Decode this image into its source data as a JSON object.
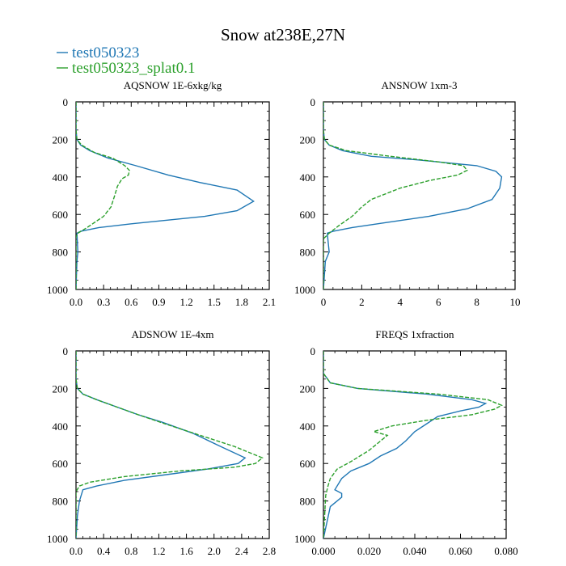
{
  "title": "Snow at238E,27N",
  "legend": [
    {
      "name": "test050323",
      "color": "#1f77b4",
      "dash": "solid"
    },
    {
      "name": "test050323_splat0.1",
      "color": "#2ca02c",
      "dash": "dashed"
    }
  ],
  "chart_data": [
    {
      "type": "line",
      "title": "AQSNOW  1E-6xkg/kg",
      "xlim": [
        0,
        2.1
      ],
      "xticks": [
        0,
        0.3,
        0.6,
        0.9,
        1.2,
        1.5,
        1.8,
        2.1
      ],
      "xtick_labels": [
        "0.0",
        "0.3",
        "0.6",
        "0.9",
        "1.2",
        "1.5",
        "1.8",
        "2.1"
      ],
      "ylim": [
        1000,
        0
      ],
      "yticks": [
        0,
        200,
        400,
        600,
        800,
        1000
      ],
      "ytick_labels": [
        "0",
        "200",
        "400",
        "600",
        "800",
        "1000"
      ],
      "y_inverted": true,
      "series": [
        {
          "name": "test050323",
          "x": [
            0,
            0,
            0.01,
            0.05,
            0.15,
            0.35,
            0.65,
            1.0,
            1.35,
            1.75,
            1.93,
            1.75,
            1.4,
            1.0,
            0.6,
            0.25,
            0.05,
            0.01,
            0.02,
            0.01,
            0
          ],
          "y": [
            0,
            150,
            200,
            230,
            260,
            300,
            340,
            390,
            430,
            470,
            530,
            580,
            610,
            630,
            650,
            670,
            690,
            700,
            800,
            850,
            1000
          ]
        },
        {
          "name": "test050323_splat0.1",
          "x": [
            0,
            0,
            0.01,
            0.06,
            0.2,
            0.4,
            0.53,
            0.58,
            0.57,
            0.5,
            0.45,
            0.42,
            0.38,
            0.3,
            0.12,
            0.02,
            0,
            0
          ],
          "y": [
            0,
            150,
            200,
            230,
            270,
            300,
            340,
            365,
            390,
            410,
            450,
            500,
            560,
            610,
            670,
            700,
            720,
            1000
          ]
        }
      ]
    },
    {
      "type": "line",
      "title": "ANSNOW  1xm-3",
      "xlim": [
        0,
        10
      ],
      "xticks": [
        0,
        2,
        4,
        6,
        8,
        10
      ],
      "xtick_labels": [
        "0",
        "2",
        "4",
        "6",
        "8",
        "10"
      ],
      "ylim": [
        1000,
        0
      ],
      "yticks": [
        0,
        200,
        400,
        600,
        800,
        1000
      ],
      "ytick_labels": [
        "0",
        "200",
        "400",
        "600",
        "800",
        "1000"
      ],
      "y_inverted": true,
      "series": [
        {
          "name": "test050323",
          "x": [
            0,
            0,
            0.05,
            0.3,
            1.0,
            2.5,
            5.0,
            8.0,
            9.0,
            9.3,
            9.2,
            8.8,
            7.5,
            5.5,
            3.5,
            1.5,
            0.5,
            0.2,
            0.3,
            0.1,
            0
          ],
          "y": [
            0,
            150,
            200,
            230,
            260,
            290,
            310,
            340,
            370,
            400,
            460,
            520,
            570,
            610,
            640,
            670,
            690,
            700,
            800,
            850,
            1000
          ]
        },
        {
          "name": "test050323_splat0.1",
          "x": [
            0,
            0,
            0.05,
            0.3,
            1.2,
            3.5,
            6.0,
            7.3,
            7.5,
            7.0,
            5.5,
            4.0,
            2.5,
            2.0,
            1.5,
            0.8,
            0.3,
            0,
            0
          ],
          "y": [
            0,
            150,
            200,
            230,
            260,
            290,
            320,
            340,
            365,
            390,
            420,
            460,
            520,
            560,
            610,
            660,
            700,
            730,
            1000
          ]
        }
      ]
    },
    {
      "type": "line",
      "title": "ADSNOW  1E-4xm",
      "xlim": [
        0,
        2.8
      ],
      "xticks": [
        0,
        0.4,
        0.8,
        1.2,
        1.6,
        2.0,
        2.4,
        2.8
      ],
      "xtick_labels": [
        "0.0",
        "0.4",
        "0.8",
        "1.2",
        "1.6",
        "2.0",
        "2.4",
        "2.8"
      ],
      "ylim": [
        1000,
        0
      ],
      "yticks": [
        0,
        200,
        400,
        600,
        800,
        1000
      ],
      "ytick_labels": [
        "0",
        "200",
        "400",
        "600",
        "800",
        "1000"
      ],
      "y_inverted": true,
      "series": [
        {
          "name": "test050323",
          "x": [
            0,
            0,
            0.02,
            0.1,
            0.3,
            0.6,
            0.9,
            1.25,
            1.7,
            2.1,
            2.45,
            2.35,
            1.9,
            1.3,
            0.7,
            0.3,
            0.1,
            0.05,
            0.02,
            0
          ],
          "y": [
            0,
            150,
            200,
            230,
            260,
            300,
            340,
            380,
            440,
            510,
            570,
            600,
            630,
            660,
            690,
            720,
            740,
            800,
            880,
            1000
          ]
        },
        {
          "name": "test050323_splat0.1",
          "x": [
            0,
            0,
            0.02,
            0.1,
            0.3,
            0.6,
            0.9,
            1.3,
            1.8,
            2.3,
            2.7,
            2.6,
            2.3,
            1.5,
            0.7,
            0.2,
            0.05,
            0,
            0
          ],
          "y": [
            0,
            150,
            200,
            230,
            260,
            300,
            340,
            390,
            450,
            510,
            570,
            600,
            620,
            640,
            670,
            700,
            720,
            750,
            1000
          ]
        }
      ]
    },
    {
      "type": "line",
      "title": "FREQS  1xfraction",
      "xlim": [
        0,
        0.08
      ],
      "xticks": [
        0,
        0.02,
        0.04,
        0.06,
        0.08
      ],
      "xtick_labels": [
        "0.000",
        "0.020",
        "0.040",
        "0.060",
        "0.080"
      ],
      "ylim": [
        1000,
        0
      ],
      "yticks": [
        0,
        200,
        400,
        600,
        800,
        1000
      ],
      "ytick_labels": [
        "0",
        "200",
        "400",
        "600",
        "800",
        "1000"
      ],
      "y_inverted": true,
      "series": [
        {
          "name": "test050323",
          "x": [
            0,
            0,
            0.003,
            0.015,
            0.045,
            0.065,
            0.071,
            0.068,
            0.06,
            0.05,
            0.045,
            0.04,
            0.036,
            0.032,
            0.025,
            0.02,
            0.012,
            0.008,
            0.005,
            0.008,
            0.008,
            0.006,
            0.003,
            0
          ],
          "y": [
            0,
            120,
            170,
            200,
            230,
            260,
            280,
            300,
            320,
            350,
            390,
            430,
            480,
            520,
            560,
            600,
            640,
            680,
            740,
            760,
            780,
            800,
            830,
            1000
          ]
        },
        {
          "name": "test050323_splat0.1",
          "x": [
            0,
            0,
            0.003,
            0.015,
            0.05,
            0.072,
            0.078,
            0.075,
            0.065,
            0.045,
            0.03,
            0.022,
            0.028,
            0.025,
            0.02,
            0.012,
            0.006,
            0.003,
            0.002,
            0.001,
            0
          ],
          "y": [
            0,
            120,
            170,
            200,
            230,
            260,
            290,
            310,
            340,
            370,
            400,
            430,
            450,
            480,
            530,
            590,
            630,
            680,
            720,
            770,
            1000
          ]
        }
      ]
    }
  ]
}
